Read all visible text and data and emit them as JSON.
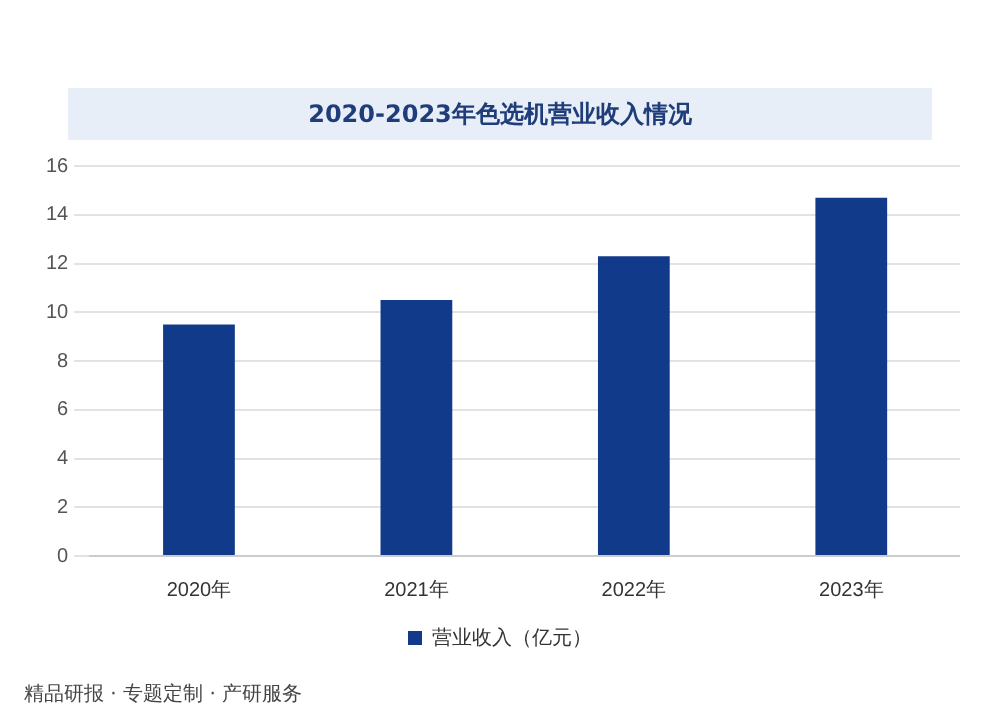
{
  "chart_data": {
    "type": "bar",
    "title": "2020-2023年色选机营业收入情况",
    "categories": [
      "2020年",
      "2021年",
      "2022年",
      "2023年"
    ],
    "series": [
      {
        "name": "营业收入（亿元）",
        "color": "#123a8a",
        "values": [
          9.5,
          10.5,
          12.3,
          14.7
        ]
      }
    ],
    "ylim": [
      0,
      16
    ],
    "yticks": [
      0,
      2,
      4,
      6,
      8,
      10,
      12,
      14,
      16
    ],
    "grid": "y",
    "legend": "bottom",
    "annotations": [
      "精品研报 · 专题定制 · 产研服务"
    ]
  }
}
